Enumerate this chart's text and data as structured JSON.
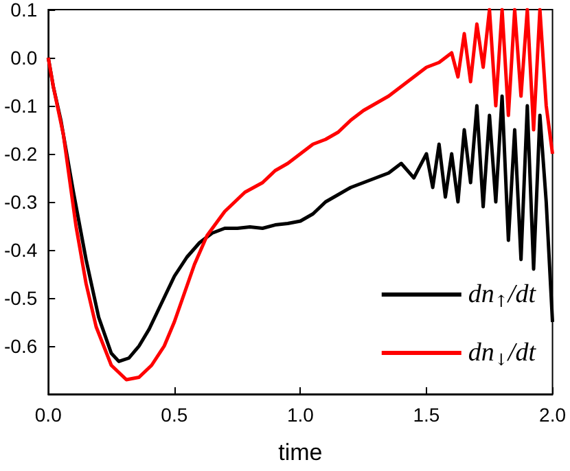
{
  "chart_data": {
    "type": "line",
    "xlabel": "time",
    "xlim": [
      0,
      2.0
    ],
    "ylim": [
      -0.7,
      0.1
    ],
    "xticks": [
      {
        "value": 0,
        "label": "0.0"
      },
      0.5,
      {
        "value": 1,
        "label": "1.0"
      },
      1.5,
      {
        "value": 2,
        "label": "2.0"
      }
    ],
    "yticks": [
      0.1,
      {
        "value": 0,
        "label": "0.0"
      },
      -0.1,
      -0.2,
      -0.3,
      -0.4,
      -0.5,
      -0.6
    ],
    "grid": false,
    "legend": "bottom right",
    "marker": "none",
    "line_style": "solid",
    "series": [
      {
        "name": "dn$_{↑}$/dt",
        "color": "#000000",
        "x": [
          0,
          0.02,
          0.05,
          0.1,
          0.15,
          0.2,
          0.25,
          0.28,
          0.32,
          0.36,
          0.4,
          0.45,
          0.5,
          0.55,
          0.6,
          0.65,
          0.7,
          0.75,
          0.8,
          0.85,
          0.9,
          0.95,
          1.0,
          1.05,
          1.1,
          1.15,
          1.2,
          1.25,
          1.3,
          1.35,
          1.4,
          1.45,
          1.5,
          1.525,
          1.55,
          1.575,
          1.6,
          1.625,
          1.65,
          1.675,
          1.7,
          1.725,
          1.75,
          1.775,
          1.8,
          1.825,
          1.85,
          1.875,
          1.9,
          1.925,
          1.95,
          1.975,
          1.99,
          2.0
        ],
        "values": [
          0,
          -0.06,
          -0.13,
          -0.28,
          -0.42,
          -0.54,
          -0.615,
          -0.632,
          -0.625,
          -0.6,
          -0.565,
          -0.51,
          -0.455,
          -0.415,
          -0.385,
          -0.365,
          -0.355,
          -0.355,
          -0.352,
          -0.355,
          -0.348,
          -0.345,
          -0.34,
          -0.325,
          -0.3,
          -0.285,
          -0.27,
          -0.26,
          -0.25,
          -0.24,
          -0.22,
          -0.25,
          -0.2,
          -0.27,
          -0.18,
          -0.29,
          -0.2,
          -0.3,
          -0.15,
          -0.26,
          -0.1,
          -0.31,
          -0.12,
          -0.3,
          -0.08,
          -0.38,
          -0.15,
          -0.42,
          -0.1,
          -0.44,
          -0.12,
          -0.3,
          -0.45,
          -0.55
        ]
      },
      {
        "name": "dn$_{↓}$/dt",
        "color": "#ff0000",
        "x": [
          0,
          0.02,
          0.06,
          0.11,
          0.15,
          0.19,
          0.25,
          0.31,
          0.36,
          0.41,
          0.46,
          0.5,
          0.54,
          0.58,
          0.63,
          0.7,
          0.78,
          0.85,
          0.9,
          0.95,
          1.0,
          1.05,
          1.1,
          1.15,
          1.2,
          1.25,
          1.3,
          1.35,
          1.4,
          1.45,
          1.5,
          1.55,
          1.6,
          1.625,
          1.65,
          1.675,
          1.7,
          1.725,
          1.75,
          1.775,
          1.8,
          1.825,
          1.85,
          1.875,
          1.9,
          1.925,
          1.95,
          1.975,
          2.0
        ],
        "values": [
          0,
          -0.06,
          -0.16,
          -0.35,
          -0.47,
          -0.56,
          -0.64,
          -0.67,
          -0.665,
          -0.64,
          -0.6,
          -0.55,
          -0.49,
          -0.43,
          -0.37,
          -0.32,
          -0.28,
          -0.26,
          -0.235,
          -0.22,
          -0.2,
          -0.18,
          -0.17,
          -0.155,
          -0.13,
          -0.11,
          -0.095,
          -0.08,
          -0.06,
          -0.04,
          -0.02,
          -0.01,
          0.01,
          -0.04,
          0.05,
          -0.05,
          0.07,
          -0.02,
          0.1,
          -0.1,
          0.1,
          -0.12,
          0.1,
          -0.08,
          0.1,
          -0.15,
          0.1,
          -0.1,
          -0.2
        ]
      }
    ]
  }
}
